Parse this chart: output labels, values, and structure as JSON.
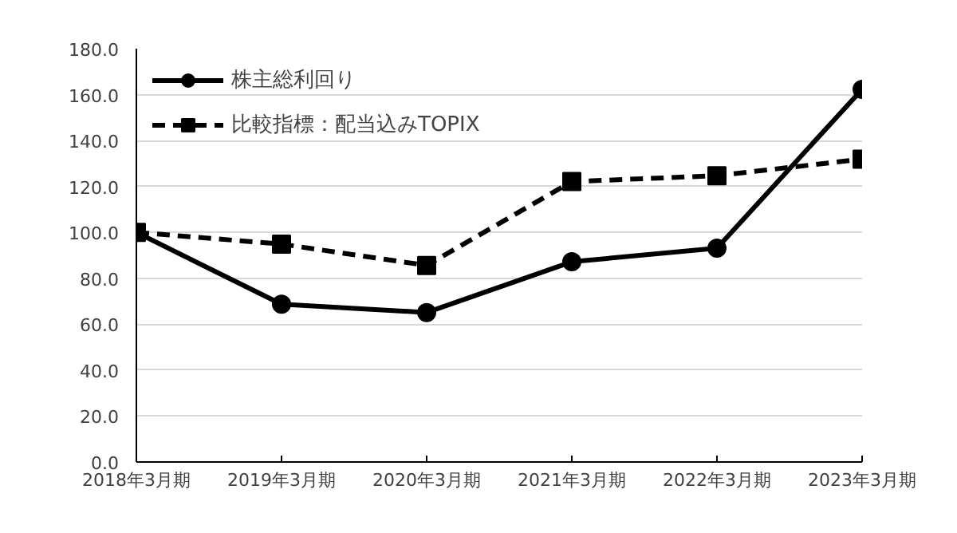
{
  "chart_data": {
    "type": "line",
    "categories": [
      "2018年3月期",
      "2019年3月期",
      "2020年3月期",
      "2021年3月期",
      "2022年3月期",
      "2023年3月期"
    ],
    "series": [
      {
        "name": "株主総利回り",
        "color": "#000000",
        "marker": "circle",
        "line_style": "solid",
        "values": [
          100,
          68.7,
          65.1,
          87.2,
          93.1,
          162.3
        ]
      },
      {
        "name": "比較指標：配当込みTOPIX",
        "color": "#000000",
        "marker": "square",
        "line_style": "dashed",
        "values": [
          100,
          94.9,
          85.6,
          122.1,
          124.7,
          131.9
        ]
      }
    ],
    "ylim": [
      0,
      180
    ],
    "yticks": [
      {
        "value": 0,
        "label": "0.0"
      },
      {
        "value": 20,
        "label": "20.0"
      },
      {
        "value": 40,
        "label": "40.0"
      },
      {
        "value": 60,
        "label": "60.0"
      },
      {
        "value": 80,
        "label": "80.0"
      },
      {
        "value": 100,
        "label": "100.0"
      },
      {
        "value": 120,
        "label": "120.0"
      },
      {
        "value": 140,
        "label": "140.0"
      },
      {
        "value": 160,
        "label": "160.0"
      },
      {
        "value": 180,
        "label": "180.0"
      }
    ],
    "grid": "y",
    "legend": "top left"
  }
}
